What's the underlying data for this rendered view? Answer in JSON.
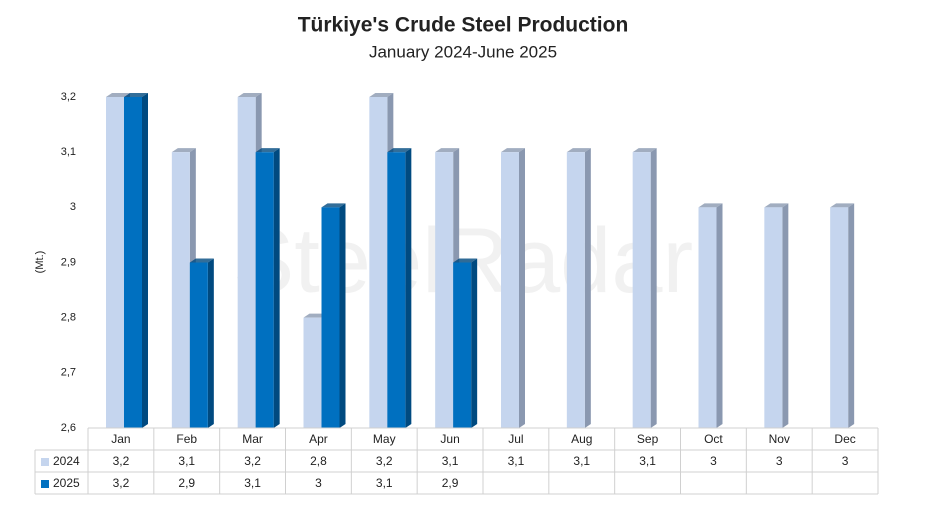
{
  "chart_data": {
    "type": "bar3d",
    "title": "Türkiye's Crude Steel Production",
    "subtitle": "January 2024-June 2025",
    "y_label": "(Mt.)",
    "watermark": "SteelRadar",
    "categories": [
      "Jan",
      "Feb",
      "Mar",
      "Apr",
      "May",
      "Jun",
      "Jul",
      "Aug",
      "Sep",
      "Oct",
      "Nov",
      "Dec"
    ],
    "series": [
      {
        "name": "2024",
        "color": "#c5d5ee",
        "side": "#8a98b0",
        "values": [
          3.2,
          3.1,
          3.2,
          2.8,
          3.2,
          3.1,
          3.1,
          3.1,
          3.1,
          3,
          3,
          3
        ],
        "value_labels": [
          "3,2",
          "3,1",
          "3,2",
          "2,8",
          "3,2",
          "3,1",
          "3,1",
          "3,1",
          "3,1",
          "3",
          "3",
          "3"
        ]
      },
      {
        "name": "2025",
        "color": "#0070c0",
        "side": "#004a80",
        "values": [
          3.2,
          2.9,
          3.1,
          3,
          3.1,
          2.9,
          null,
          null,
          null,
          null,
          null,
          null
        ],
        "value_labels": [
          "3,2",
          "2,9",
          "3,1",
          "3",
          "3,1",
          "2,9",
          null,
          null,
          null,
          null,
          null,
          null
        ]
      }
    ],
    "ylim": [
      2.6,
      3.2
    ],
    "yticks": [
      {
        "value": 2.6,
        "label": "2,6"
      },
      {
        "value": 2.7,
        "label": "2,7"
      },
      {
        "value": 2.8,
        "label": "2,8"
      },
      {
        "value": 2.9,
        "label": "2,9"
      },
      3,
      {
        "value": 3.1,
        "label": "3,1"
      },
      {
        "value": 3.2,
        "label": "3,2"
      }
    ]
  }
}
